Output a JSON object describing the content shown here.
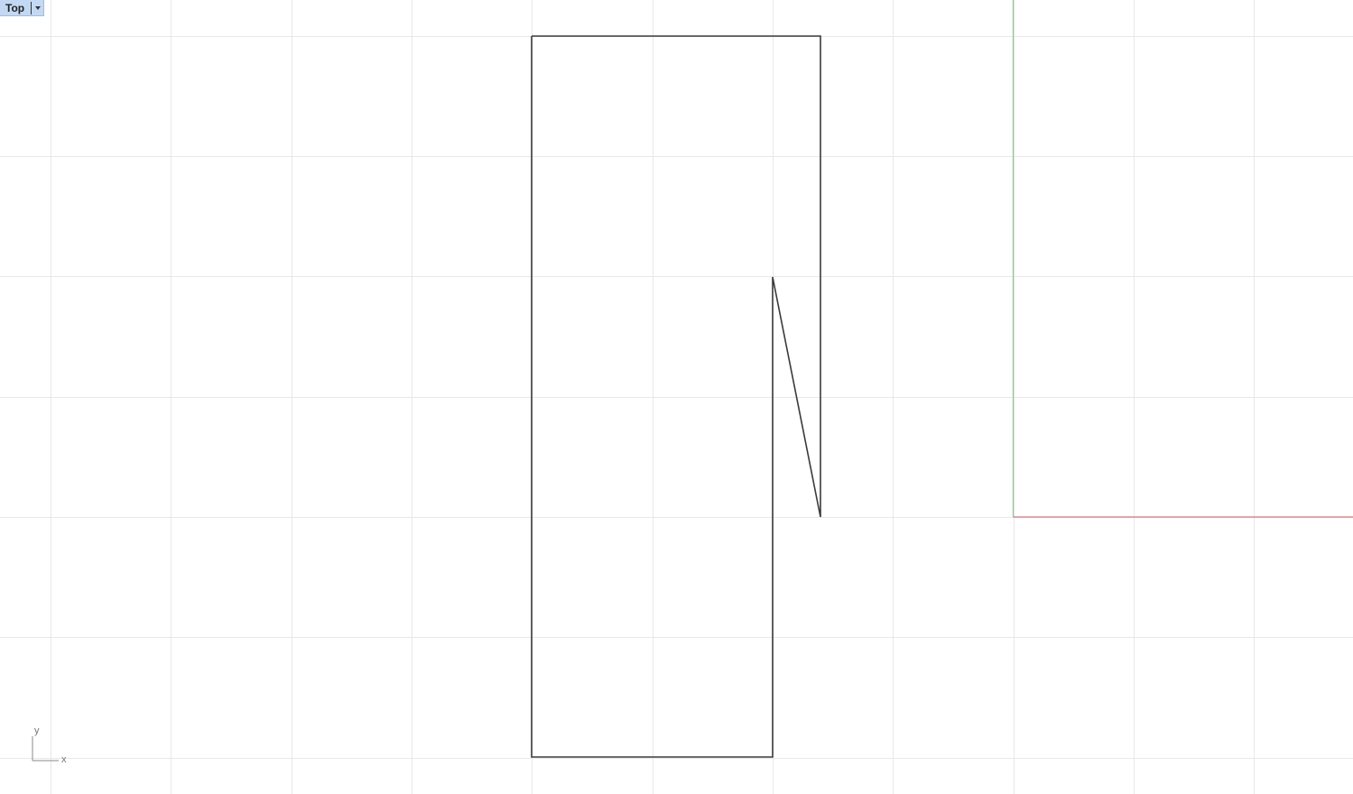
{
  "viewport": {
    "name": "Top",
    "colors": {
      "background": "#ffffff",
      "grid_line": "#e6e8ea",
      "geometry": "#3a3a3a",
      "x_axis": "#d9767a",
      "y_axis": "#8ec98b",
      "tab_background": "#c3d9f3"
    }
  },
  "axis_widget": {
    "x_label": "x",
    "y_label": "y"
  }
}
